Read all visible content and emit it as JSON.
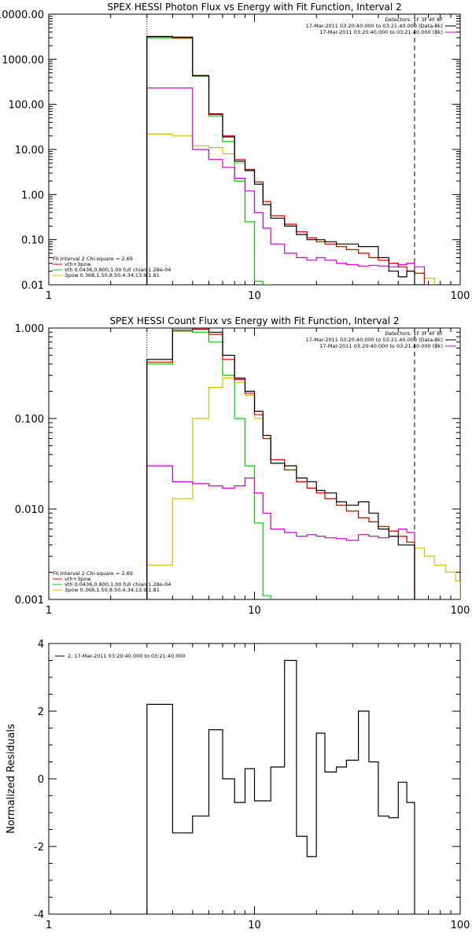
{
  "colors": {
    "black": "#000000",
    "red": "#e00000",
    "green": "#00d000",
    "yellow": "#d8c000",
    "magenta": "#d000d0"
  },
  "chart_data": [
    {
      "type": "line",
      "title": "SPEX HESSI Photon Flux vs Energy with Fit Function, Interval 2",
      "scale": "log-log",
      "xlim": [
        1,
        100
      ],
      "ylim": [
        0.01,
        10000
      ],
      "ytick_labels": [
        "0.01",
        "0.10",
        "1.00",
        "10.00",
        "100.00",
        "1000.00",
        "10000.00"
      ],
      "xtick_labels": [
        "1",
        "10",
        "100"
      ],
      "legend_top_right": [
        "Detectors: 1F 3F 4F 8F",
        "17-Mar-2011 03:20:40.000 to 03:21:40.000 (Data-Bk)",
        "17-Mar-2011 03:20:40.000 to 03:21:40.000 (Bk)"
      ],
      "legend_bottom_left": [
        "Fit Interval 2   Chi-square = 2.69",
        "vth+3pow",
        "vth 0.0436,0.800,1.00  full chian 1.28e-04",
        "3pow 0.368,1.50,8.50,4.34,13.9,1.81"
      ],
      "vlines": {
        "dotted": 3,
        "dashed": 60
      },
      "edges": [
        3,
        4,
        5,
        6,
        7,
        8,
        9,
        10,
        11,
        12,
        14,
        16,
        18,
        20,
        22,
        25,
        28,
        32,
        36,
        40,
        45,
        50,
        55,
        60,
        67,
        75
      ],
      "series": [
        {
          "name": "Data-Bk",
          "color_key": "black",
          "values": [
            3200,
            3100,
            430,
            60,
            19,
            5.5,
            3.4,
            1.7,
            0.6,
            0.3,
            0.2,
            0.13,
            0.1,
            0.1,
            0.09,
            0.08,
            0.08,
            0.07,
            0.07,
            0.04,
            0.02,
            0.015,
            0.02,
            0.01
          ]
        },
        {
          "name": "vth+3pow",
          "color_key": "red",
          "values": [
            3150,
            3000,
            440,
            62,
            20,
            6,
            3.6,
            1.9,
            0.7,
            0.34,
            0.22,
            0.15,
            0.11,
            0.09,
            0.08,
            0.07,
            0.06,
            0.05,
            0.04,
            0.035,
            0.03,
            0.025,
            0.02,
            0.018
          ]
        },
        {
          "name": "vth",
          "color_key": "green",
          "values": [
            3000,
            2900,
            420,
            55,
            15,
            2,
            0.25,
            0.012,
            0.0001
          ]
        },
        {
          "name": "3pow",
          "color_key": "yellow",
          "values": [
            22,
            20,
            12,
            11,
            8,
            5,
            3.4,
            1.9,
            0.7,
            0.34,
            0.22,
            0.15,
            0.11,
            0.09,
            0.08,
            0.07,
            0.06,
            0.05,
            0.04,
            0.035,
            0.03,
            0.025,
            0.02,
            0.018,
            0.014
          ]
        },
        {
          "name": "Bk",
          "color_key": "magenta",
          "values": [
            230,
            230,
            10,
            6,
            4,
            2.3,
            1.2,
            0.4,
            0.18,
            0.08,
            0.05,
            0.04,
            0.035,
            0.04,
            0.035,
            0.03,
            0.028,
            0.026,
            0.027,
            0.026,
            0.025,
            0.028,
            0.03,
            0.025
          ]
        }
      ]
    },
    {
      "type": "line",
      "title": "SPEX HESSI Count Flux vs Energy with Fit Function, Interval 2",
      "scale": "log-log",
      "xlim": [
        1,
        100
      ],
      "ylim": [
        0.001,
        1.0
      ],
      "ytick_labels": [
        "0.001",
        "0.010",
        "0.100",
        "1.000"
      ],
      "xtick_labels": [
        "1",
        "10",
        "100"
      ],
      "legend_top_right": [
        "Detectors: 1F 3F 4F 8F",
        "17-Mar-2011 03:20:40.000 to 03:21:40.000 (Data-Bk)",
        "17-Mar-2011 03:20:40.000 to 03:21:40.000 (Bk)"
      ],
      "legend_bottom_left": [
        "Fit Interval 2   Chi-square = 2.69",
        "vth+3pow",
        "vth 0.0436,0.800,1.00  full chian 1.28e-04",
        "3pow 0.368,1.50,8.50,4.34,13.9,1.81"
      ],
      "vlines": {
        "dotted": 3,
        "dashed": 60
      },
      "edges": [
        3,
        4,
        5,
        6,
        7,
        8,
        9,
        10,
        11,
        12,
        14,
        16,
        18,
        20,
        22,
        25,
        28,
        32,
        36,
        40,
        45,
        50,
        55,
        60,
        67,
        75,
        85,
        95,
        100
      ],
      "series": [
        {
          "name": "Data-Bk",
          "color_key": "black",
          "values": [
            0.45,
            1.0,
            1.0,
            0.9,
            0.5,
            0.28,
            0.2,
            0.12,
            0.065,
            0.032,
            0.03,
            0.022,
            0.02,
            0.016,
            0.015,
            0.012,
            0.011,
            0.012,
            0.009,
            0.006,
            0.005,
            0.004,
            0.004
          ]
        },
        {
          "name": "vth+3pow",
          "color_key": "red",
          "values": [
            0.42,
            0.95,
            0.97,
            0.85,
            0.45,
            0.27,
            0.19,
            0.11,
            0.06,
            0.035,
            0.027,
            0.02,
            0.017,
            0.015,
            0.013,
            0.011,
            0.0095,
            0.008,
            0.0072,
            0.0064,
            0.0057,
            0.005,
            0.0043
          ]
        },
        {
          "name": "vth",
          "color_key": "green",
          "values": [
            0.4,
            0.92,
            0.9,
            0.7,
            0.3,
            0.1,
            0.03,
            0.007,
            0.0011
          ]
        },
        {
          "name": "3pow",
          "color_key": "yellow",
          "values": [
            0.0024,
            0.013,
            0.1,
            0.22,
            0.28,
            0.25,
            0.18,
            0.1,
            0.06,
            0.035,
            0.027,
            0.02,
            0.017,
            0.015,
            0.013,
            0.011,
            0.0095,
            0.008,
            0.0072,
            0.0064,
            0.0057,
            0.005,
            0.0043,
            0.0037,
            0.003,
            0.0024,
            0.002,
            0.0016
          ]
        },
        {
          "name": "Bk",
          "color_key": "magenta",
          "values": [
            0.03,
            0.02,
            0.019,
            0.018,
            0.017,
            0.018,
            0.022,
            0.015,
            0.009,
            0.006,
            0.0055,
            0.005,
            0.0052,
            0.005,
            0.0048,
            0.0047,
            0.0045,
            0.0052,
            0.005,
            0.0048,
            0.005,
            0.006,
            0.0055
          ]
        }
      ]
    },
    {
      "type": "line",
      "title": "",
      "scale": "log-linear",
      "xlim": [
        1,
        100
      ],
      "ylim": [
        -4,
        4
      ],
      "ylabel": "Normalized Residuals",
      "ytick_labels": [
        "-4",
        "-2",
        "0",
        "2",
        "4"
      ],
      "xtick_labels": [
        "1",
        "10",
        "100"
      ],
      "legend_top_left": [
        "2, 17-Mar-2011 03:20:40.000 to 03:21:40.000"
      ],
      "edges": [
        3,
        4,
        5,
        6,
        7,
        8,
        9,
        10,
        11,
        12,
        14,
        16,
        18,
        20,
        22,
        25,
        28,
        32,
        36,
        40,
        45,
        50,
        55,
        60
      ],
      "series": [
        {
          "name": "Residuals",
          "color_key": "black",
          "values": [
            2.2,
            -1.6,
            -1.1,
            1.45,
            0.0,
            -0.7,
            0.3,
            -0.65,
            -0.65,
            0.35,
            3.5,
            -1.7,
            -2.3,
            1.35,
            0.2,
            0.35,
            0.55,
            2.0,
            0.5,
            -1.1,
            -1.15,
            -0.1,
            -0.7
          ]
        }
      ]
    }
  ]
}
